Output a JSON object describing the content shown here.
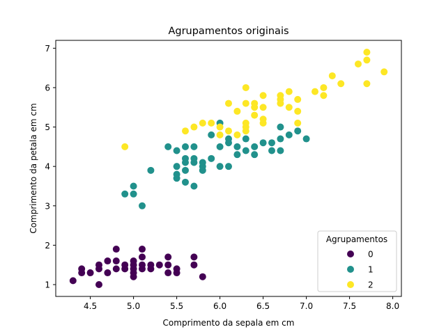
{
  "chart_data": {
    "type": "scatter",
    "title": "Agrupamentos originais",
    "xlabel": "Comprimento da sepala em cm",
    "ylabel": "Comprimento da petala em cm",
    "xlim": [
      4.1,
      8.1
    ],
    "ylim": [
      0.7,
      7.2
    ],
    "xticks": [
      "4.5",
      "5.0",
      "5.5",
      "6.0",
      "6.5",
      "7.0",
      "7.5",
      "8.0"
    ],
    "yticks": [
      "1",
      "2",
      "3",
      "4",
      "5",
      "6",
      "7"
    ],
    "grid": false,
    "legend": {
      "title": "Agrupamentos",
      "placement": "lower-right"
    },
    "series": [
      {
        "name": "0",
        "color": "#440154",
        "points": [
          [
            4.3,
            1.1
          ],
          [
            4.4,
            1.3
          ],
          [
            4.4,
            1.4
          ],
          [
            4.5,
            1.3
          ],
          [
            4.6,
            1.0
          ],
          [
            4.6,
            1.4
          ],
          [
            4.6,
            1.5
          ],
          [
            4.7,
            1.3
          ],
          [
            4.7,
            1.6
          ],
          [
            4.8,
            1.4
          ],
          [
            4.8,
            1.6
          ],
          [
            4.8,
            1.9
          ],
          [
            4.9,
            1.4
          ],
          [
            4.9,
            1.5
          ],
          [
            5.0,
            1.2
          ],
          [
            5.0,
            1.3
          ],
          [
            5.0,
            1.4
          ],
          [
            5.0,
            1.5
          ],
          [
            5.0,
            1.6
          ],
          [
            5.1,
            1.4
          ],
          [
            5.1,
            1.5
          ],
          [
            5.1,
            1.7
          ],
          [
            5.1,
            1.9
          ],
          [
            5.2,
            1.4
          ],
          [
            5.2,
            1.5
          ],
          [
            5.3,
            1.5
          ],
          [
            5.4,
            1.3
          ],
          [
            5.4,
            1.5
          ],
          [
            5.4,
            1.7
          ],
          [
            5.5,
            1.3
          ],
          [
            5.5,
            1.4
          ],
          [
            5.7,
            1.5
          ],
          [
            5.7,
            1.7
          ],
          [
            5.8,
            1.2
          ]
        ]
      },
      {
        "name": "1",
        "color": "#21918c",
        "points": [
          [
            4.9,
            3.3
          ],
          [
            5.0,
            3.3
          ],
          [
            5.0,
            3.5
          ],
          [
            5.1,
            3.0
          ],
          [
            5.2,
            3.9
          ],
          [
            5.4,
            4.5
          ],
          [
            5.5,
            3.7
          ],
          [
            5.5,
            3.8
          ],
          [
            5.5,
            4.0
          ],
          [
            5.5,
            4.4
          ],
          [
            5.6,
            3.6
          ],
          [
            5.6,
            3.9
          ],
          [
            5.6,
            4.1
          ],
          [
            5.6,
            4.2
          ],
          [
            5.6,
            4.5
          ],
          [
            5.7,
            3.5
          ],
          [
            5.7,
            4.1
          ],
          [
            5.7,
            4.2
          ],
          [
            5.7,
            4.5
          ],
          [
            5.8,
            3.9
          ],
          [
            5.8,
            4.0
          ],
          [
            5.8,
            4.1
          ],
          [
            5.9,
            4.2
          ],
          [
            5.9,
            4.8
          ],
          [
            6.0,
            4.0
          ],
          [
            6.0,
            4.5
          ],
          [
            6.0,
            5.1
          ],
          [
            6.1,
            4.0
          ],
          [
            6.1,
            4.6
          ],
          [
            6.1,
            4.7
          ],
          [
            6.2,
            4.3
          ],
          [
            6.2,
            4.5
          ],
          [
            6.3,
            4.4
          ],
          [
            6.3,
            4.7
          ],
          [
            6.4,
            4.3
          ],
          [
            6.4,
            4.5
          ],
          [
            6.5,
            4.6
          ],
          [
            6.6,
            4.4
          ],
          [
            6.6,
            4.6
          ],
          [
            6.7,
            4.4
          ],
          [
            6.7,
            4.7
          ],
          [
            6.7,
            5.0
          ],
          [
            6.8,
            4.8
          ],
          [
            6.9,
            4.9
          ],
          [
            7.0,
            4.7
          ]
        ]
      },
      {
        "name": "2",
        "color": "#fde725",
        "points": [
          [
            4.9,
            4.5
          ],
          [
            5.6,
            4.9
          ],
          [
            5.7,
            5.0
          ],
          [
            5.8,
            5.1
          ],
          [
            5.9,
            5.1
          ],
          [
            6.0,
            4.8
          ],
          [
            6.0,
            5.0
          ],
          [
            6.1,
            4.9
          ],
          [
            6.1,
            5.6
          ],
          [
            6.2,
            4.8
          ],
          [
            6.2,
            5.4
          ],
          [
            6.3,
            4.9
          ],
          [
            6.3,
            5.0
          ],
          [
            6.3,
            5.1
          ],
          [
            6.3,
            5.6
          ],
          [
            6.3,
            6.0
          ],
          [
            6.4,
            5.3
          ],
          [
            6.4,
            5.5
          ],
          [
            6.4,
            5.6
          ],
          [
            6.5,
            5.1
          ],
          [
            6.5,
            5.2
          ],
          [
            6.5,
            5.5
          ],
          [
            6.5,
            5.8
          ],
          [
            6.7,
            5.6
          ],
          [
            6.7,
            5.7
          ],
          [
            6.7,
            5.8
          ],
          [
            6.8,
            5.5
          ],
          [
            6.8,
            5.9
          ],
          [
            6.9,
            5.1
          ],
          [
            6.9,
            5.4
          ],
          [
            6.9,
            5.7
          ],
          [
            7.1,
            5.9
          ],
          [
            7.2,
            5.8
          ],
          [
            7.2,
            6.0
          ],
          [
            7.3,
            6.3
          ],
          [
            7.4,
            6.1
          ],
          [
            7.6,
            6.6
          ],
          [
            7.7,
            6.1
          ],
          [
            7.7,
            6.7
          ],
          [
            7.7,
            6.9
          ],
          [
            7.9,
            6.4
          ]
        ]
      }
    ]
  }
}
